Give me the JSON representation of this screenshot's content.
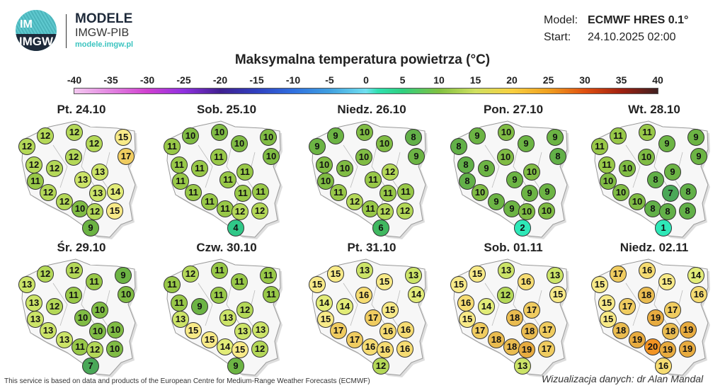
{
  "header": {
    "logo_text": "IMGW",
    "brand_title": "MODELE",
    "brand_subtitle": "IMGW-PIB",
    "brand_url": "modele.imgw.pl",
    "model_label": "Model:",
    "model_value": "ECMWF HRES 0.1°",
    "start_label": "Start:",
    "start_value": "24.10.2025 02:00"
  },
  "title": "Maksymalna temperatura powietrza (°C)",
  "colorbar": {
    "ticks": [
      "-40",
      "-35",
      "-30",
      "-25",
      "-20",
      "-15",
      "-10",
      "-5",
      "0",
      "5",
      "10",
      "15",
      "20",
      "25",
      "30",
      "35",
      "40"
    ],
    "range": [
      -40,
      40
    ]
  },
  "maps": [
    {
      "day": "Pt. 24.10",
      "values": [
        12,
        12,
        12,
        12,
        15,
        17,
        12,
        12,
        12,
        13,
        11,
        13,
        12,
        13,
        14,
        12,
        10,
        12,
        15,
        9
      ]
    },
    {
      "day": "Sob. 25.10",
      "values": [
        10,
        10,
        11,
        10,
        10,
        10,
        11,
        11,
        11,
        11,
        11,
        11,
        11,
        11,
        11,
        11,
        11,
        12,
        12,
        4
      ]
    },
    {
      "day": "Niedz. 26.10",
      "values": [
        9,
        10,
        9,
        10,
        8,
        9,
        10,
        10,
        10,
        12,
        10,
        11,
        11,
        11,
        11,
        12,
        11,
        12,
        12,
        6
      ]
    },
    {
      "day": "Pon. 27.10",
      "values": [
        9,
        10,
        8,
        9,
        9,
        8,
        10,
        8,
        9,
        10,
        8,
        9,
        10,
        9,
        9,
        9,
        9,
        10,
        10,
        2
      ]
    },
    {
      "day": "Wt. 28.10",
      "values": [
        11,
        11,
        11,
        9,
        9,
        9,
        10,
        11,
        10,
        9,
        10,
        8,
        10,
        7,
        8,
        10,
        8,
        8,
        8,
        1
      ]
    },
    {
      "day": "Śr. 29.10",
      "values": [
        12,
        12,
        13,
        11,
        9,
        10,
        11,
        13,
        12,
        10,
        13,
        10,
        13,
        10,
        10,
        13,
        11,
        12,
        10,
        7
      ]
    },
    {
      "day": "Czw. 30.10",
      "values": [
        12,
        11,
        11,
        11,
        11,
        11,
        11,
        11,
        9,
        12,
        13,
        13,
        15,
        13,
        13,
        15,
        14,
        15,
        12,
        9
      ]
    },
    {
      "day": "Pt. 31.10",
      "values": [
        15,
        13,
        15,
        15,
        13,
        14,
        16,
        14,
        14,
        15,
        15,
        17,
        17,
        16,
        16,
        17,
        16,
        16,
        16,
        12
      ]
    },
    {
      "day": "Sob. 01.11",
      "values": [
        15,
        13,
        15,
        16,
        13,
        15,
        12,
        16,
        14,
        17,
        15,
        18,
        17,
        18,
        17,
        18,
        18,
        19,
        17,
        13
      ]
    },
    {
      "day": "Niedz. 02.11",
      "values": [
        17,
        16,
        15,
        15,
        14,
        16,
        18,
        15,
        17,
        17,
        15,
        19,
        18,
        18,
        19,
        19,
        20,
        19,
        19,
        16
      ]
    }
  ],
  "footer": {
    "attribution": "This service is based on data and products of the European Centre for Medium-Range Weather Forecasts (ECMWF)",
    "credit": "Wizualizacja danych: dr Alan Mandal"
  }
}
